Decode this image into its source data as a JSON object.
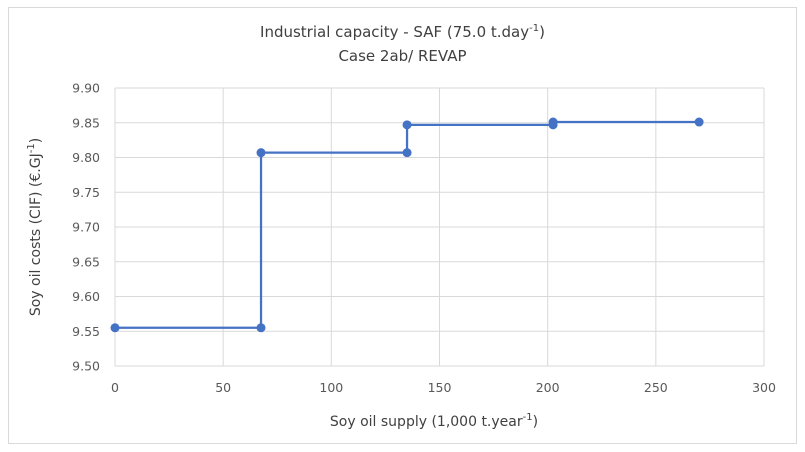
{
  "chart_data": {
    "type": "line",
    "title_line1": "Industrial capacity - SAF (75.0 t.day",
    "title_line1_sup": "-1",
    "title_line1_end": ")",
    "title_line2": "Case 2ab/ REVAP",
    "xlabel": "Soy oil supply (1,000 t.year",
    "xlabel_sup": "-1",
    "xlabel_end": ")",
    "ylabel": "Soy oil costs (CIF) (€.GJ",
    "ylabel_sup": "-1",
    "ylabel_end": ")",
    "xlim": [
      0,
      300
    ],
    "ylim": [
      9.5,
      9.9
    ],
    "x_ticks": [
      "0",
      "50",
      "100",
      "150",
      "200",
      "250",
      "300"
    ],
    "y_ticks": [
      "9.50",
      "9.55",
      "9.60",
      "9.65",
      "9.70",
      "9.75",
      "9.80",
      "9.85",
      "9.90"
    ],
    "grid": true,
    "series": [
      {
        "color": "#4472c4",
        "points": [
          {
            "x": 0,
            "y": 9.555
          },
          {
            "x": 67.5,
            "y": 9.555
          },
          {
            "x": 67.5,
            "y": 9.807
          },
          {
            "x": 135,
            "y": 9.807
          },
          {
            "x": 135,
            "y": 9.847
          },
          {
            "x": 202.5,
            "y": 9.847
          },
          {
            "x": 202.5,
            "y": 9.851
          },
          {
            "x": 270,
            "y": 9.851
          }
        ]
      }
    ]
  }
}
